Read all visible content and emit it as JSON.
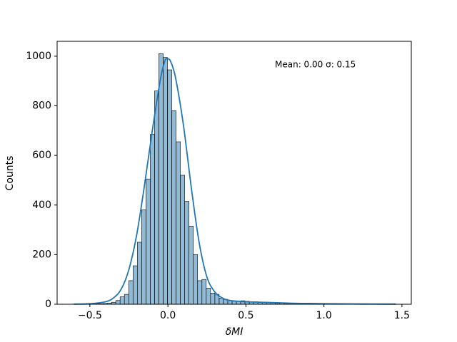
{
  "chart_data": {
    "type": "histogram",
    "xlabel": "δMI",
    "ylabel": "Counts",
    "annotation": "Mean: 0.00 σ: 0.15",
    "bins": [
      -0.61,
      -0.5824,
      -0.5548,
      -0.5272,
      -0.4996,
      -0.472,
      -0.4444,
      -0.4168,
      -0.3892,
      -0.3616,
      -0.334,
      -0.3064,
      -0.2788,
      -0.2512,
      -0.2236,
      -0.196,
      -0.1684,
      -0.1408,
      -0.1132,
      -0.0856,
      -0.058,
      -0.0304,
      -0.0028,
      0.0248,
      0.0524,
      0.08,
      0.1076,
      0.1352,
      0.1628,
      0.1904,
      0.218,
      0.2456,
      0.2732,
      0.3008,
      0.3284,
      0.356,
      0.3836,
      0.4112,
      0.4388,
      0.4664,
      0.494,
      0.5216,
      0.5492,
      0.5768,
      0.6044,
      0.632,
      0.6596,
      0.6872,
      0.7148,
      0.7424,
      0.77,
      0.7976,
      0.8252,
      0.8528,
      0.8804,
      0.908,
      0.9356,
      0.9632,
      0.9908,
      1.0184,
      1.046,
      1.0736,
      1.1012,
      1.1288,
      1.1564,
      1.184,
      1.2116,
      1.2392,
      1.2668,
      1.2944,
      1.322,
      1.3496,
      1.3772,
      1.4048,
      1.4324,
      1.46
    ],
    "values": [
      1,
      1,
      0,
      1,
      1,
      2,
      2,
      3,
      5,
      8,
      15,
      30,
      40,
      95,
      155,
      250,
      380,
      505,
      685,
      860,
      1010,
      995,
      945,
      780,
      655,
      520,
      415,
      315,
      200,
      95,
      100,
      65,
      45,
      40,
      25,
      20,
      15,
      12,
      12,
      14,
      12,
      10,
      10,
      8,
      7,
      6,
      5,
      4,
      4,
      3,
      3,
      2,
      2,
      2,
      2,
      1,
      1,
      1,
      1,
      1,
      1,
      2,
      1,
      1,
      1,
      1,
      1,
      0,
      1,
      0,
      0,
      1,
      0,
      0,
      1
    ],
    "color": "#1f77b4",
    "kde": {
      "x": [
        -0.6,
        -0.5,
        -0.4,
        -0.35,
        -0.3,
        -0.25,
        -0.2,
        -0.15,
        -0.1,
        -0.05,
        -0.02,
        0,
        0.02,
        0.05,
        0.1,
        0.15,
        0.2,
        0.25,
        0.3,
        0.35,
        0.4,
        0.5,
        0.6,
        0.7,
        0.8,
        0.9,
        1.0,
        1.2,
        1.46
      ],
      "y": [
        0.5,
        2,
        10,
        25,
        60,
        140,
        280,
        480,
        700,
        900,
        980,
        990,
        975,
        910,
        720,
        470,
        250,
        110,
        50,
        25,
        15,
        10,
        8,
        6,
        4,
        3,
        2,
        1,
        0.5
      ]
    },
    "xlim": [
      -0.71,
      1.56
    ],
    "ylim": [
      0,
      1060
    ],
    "xticks": [
      {
        "value": -0.5,
        "label": "−0.5"
      },
      {
        "value": 0,
        "label": "0.0"
      },
      0.5,
      {
        "value": 1,
        "label": "1.0"
      },
      1.5
    ],
    "yticks": [
      0,
      200,
      400,
      600,
      800,
      1000
    ]
  }
}
